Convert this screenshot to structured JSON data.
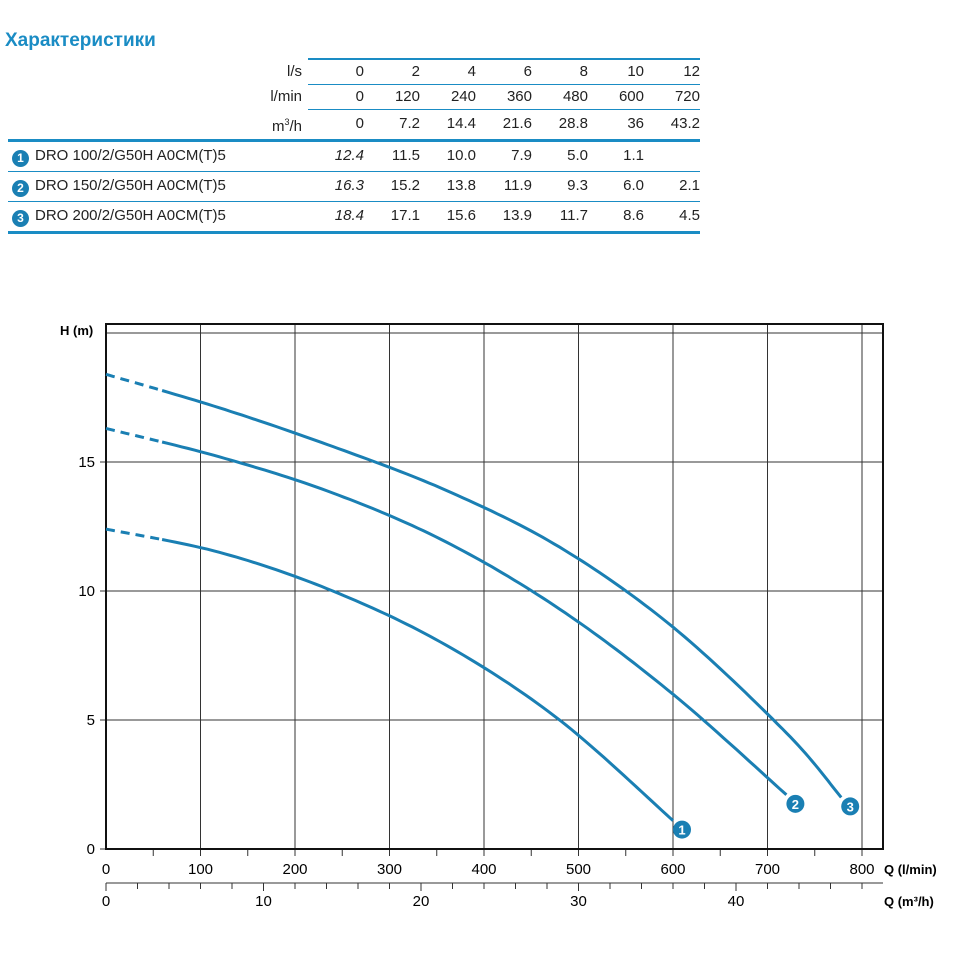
{
  "title": "Характеристики",
  "table": {
    "units": [
      {
        "label": "l/s",
        "values": [
          "0",
          "2",
          "4",
          "6",
          "8",
          "10",
          "12"
        ]
      },
      {
        "label": "l/min",
        "values": [
          "0",
          "120",
          "240",
          "360",
          "480",
          "600",
          "720"
        ]
      },
      {
        "label_base": "m",
        "label_sup": "3",
        "label_tail": "/h",
        "values": [
          "0",
          "7.2",
          "14.4",
          "21.6",
          "28.8",
          "36",
          "43.2"
        ]
      }
    ],
    "models": [
      {
        "num": "1",
        "name": "DRO 100/2/G50H A0CM(T)5",
        "values": [
          "12.4",
          "11.5",
          "10.0",
          "7.9",
          "5.0",
          "1.1",
          ""
        ]
      },
      {
        "num": "2",
        "name": "DRO 150/2/G50H A0CM(T)5",
        "values": [
          "16.3",
          "15.2",
          "13.8",
          "11.9",
          "9.3",
          "6.0",
          "2.1"
        ]
      },
      {
        "num": "3",
        "name": "DRO 200/2/G50H A0CM(T)5",
        "values": [
          "18.4",
          "17.1",
          "15.6",
          "13.9",
          "11.7",
          "8.6",
          "4.5"
        ]
      }
    ]
  },
  "chart_data": {
    "type": "line",
    "ylabel": "H (m)",
    "xlabel": "Q (l/min)",
    "x2label": "Q (m³/h)",
    "xlim": [
      0,
      822
    ],
    "ylim": [
      0,
      20.3
    ],
    "xticks": [
      0,
      100,
      200,
      300,
      400,
      500,
      600,
      700,
      800
    ],
    "yticks": [
      0,
      5,
      10,
      15
    ],
    "x2ticks": [
      0,
      10,
      20,
      30,
      40
    ],
    "grid": true,
    "dashed_until_x": 60,
    "line_color": "#1a7fb3",
    "series": [
      {
        "name": "1",
        "x": [
          0,
          120,
          240,
          360,
          480,
          600
        ],
        "y": [
          12.4,
          11.5,
          10.0,
          7.9,
          5.0,
          1.1
        ]
      },
      {
        "name": "2",
        "x": [
          0,
          120,
          240,
          360,
          480,
          600,
          720
        ],
        "y": [
          16.3,
          15.2,
          13.8,
          11.9,
          9.3,
          6.0,
          2.1
        ]
      },
      {
        "name": "3",
        "x": [
          0,
          120,
          240,
          360,
          480,
          600,
          720,
          778
        ],
        "y": [
          18.4,
          17.1,
          15.6,
          13.9,
          11.7,
          8.6,
          4.5,
          2.0
        ]
      }
    ]
  }
}
